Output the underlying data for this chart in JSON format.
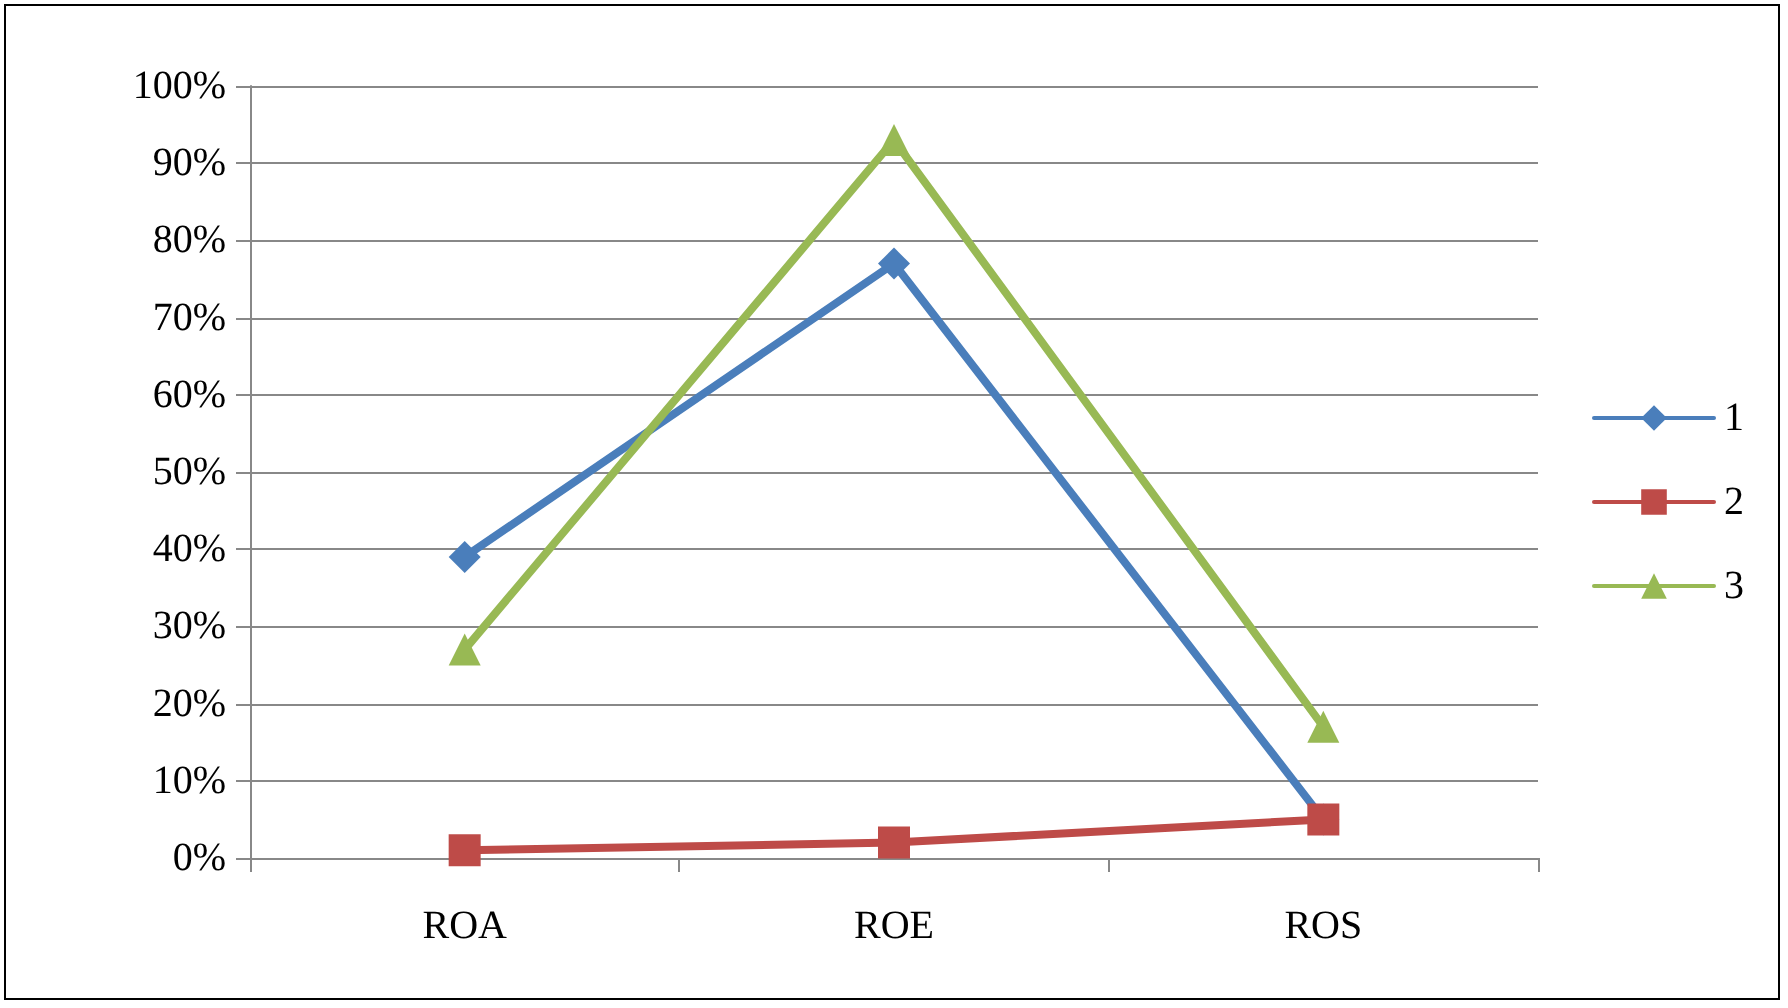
{
  "chart_data": {
    "type": "line",
    "categories": [
      "ROA",
      "ROE",
      "ROS"
    ],
    "series": [
      {
        "name": "1",
        "color": "#4a7ebb",
        "values": [
          39,
          77,
          5
        ],
        "marker": "diamond"
      },
      {
        "name": "2",
        "color": "#be4b48",
        "values": [
          1,
          2,
          5
        ],
        "marker": "square"
      },
      {
        "name": "3",
        "color": "#98b954",
        "values": [
          27,
          93,
          17
        ],
        "marker": "triangle"
      }
    ],
    "ylim": [
      0,
      100
    ],
    "yticks": [
      {
        "value": 0,
        "label": "0%"
      },
      {
        "value": 10,
        "label": "10%"
      },
      {
        "value": 20,
        "label": "20%"
      },
      {
        "value": 30,
        "label": "30%"
      },
      {
        "value": 40,
        "label": "40%"
      },
      {
        "value": 50,
        "label": "50%"
      },
      {
        "value": 60,
        "label": "60%"
      },
      {
        "value": 70,
        "label": "70%"
      },
      {
        "value": 80,
        "label": "80%"
      },
      {
        "value": 90,
        "label": "90%"
      },
      {
        "value": 100,
        "label": "100%"
      }
    ],
    "grid": "y",
    "legend": "right",
    "line_style": "solid"
  }
}
